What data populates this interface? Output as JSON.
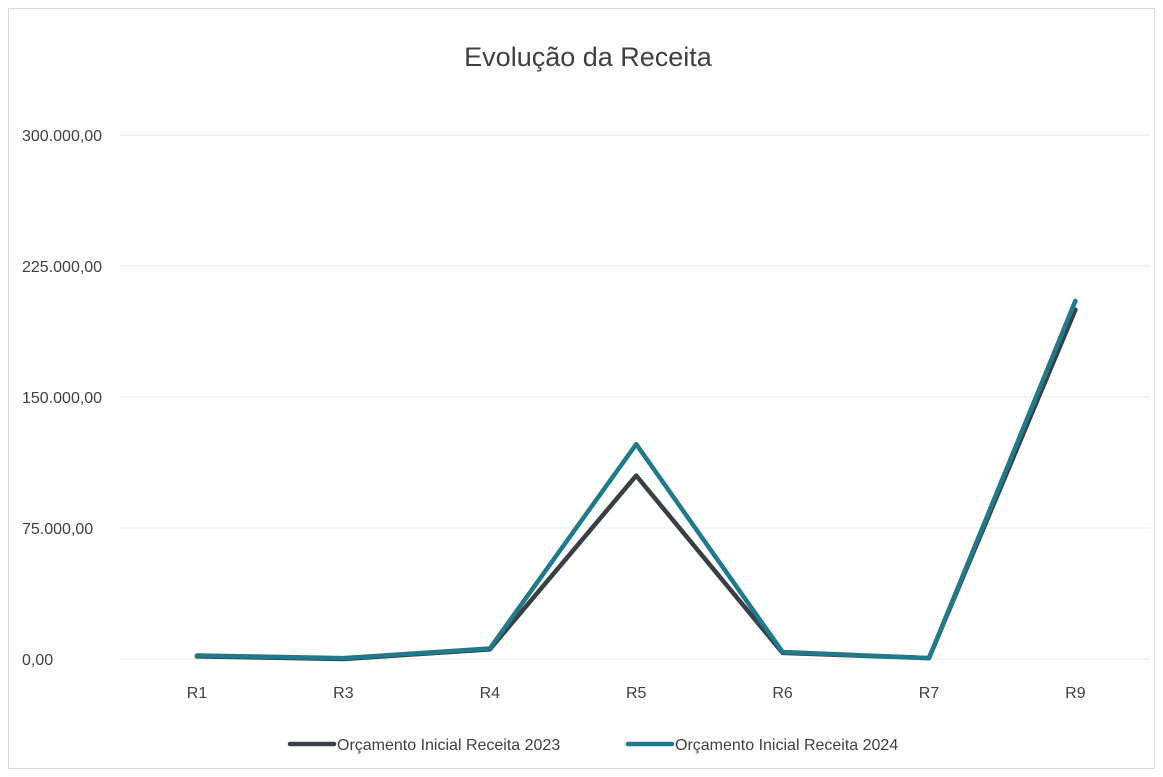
{
  "chart_data": {
    "type": "line",
    "title": "Evolução da Receita",
    "xlabel": "",
    "ylabel": "",
    "categories": [
      "R1",
      "R3",
      "R4",
      "R5",
      "R6",
      "R7",
      "R9"
    ],
    "y_ticks": [
      0,
      75000,
      150000,
      225000,
      300000
    ],
    "y_tick_labels": [
      "0,00",
      "75.000,00",
      "150.000,00",
      "225.000,00",
      "300.000,00"
    ],
    "ylim": [
      0,
      300000
    ],
    "grid": true,
    "legend_position": "bottom",
    "series": [
      {
        "name": "Orçamento Inicial  Receita 2023",
        "color": "#3a3f44",
        "values": [
          1500,
          0,
          5500,
          105000,
          3500,
          500,
          200000
        ]
      },
      {
        "name": "Orçamento Inicial Receita 2024",
        "color": "#1f7a8c",
        "values": [
          2000,
          500,
          6000,
          123000,
          4000,
          500,
          205000
        ]
      }
    ]
  }
}
